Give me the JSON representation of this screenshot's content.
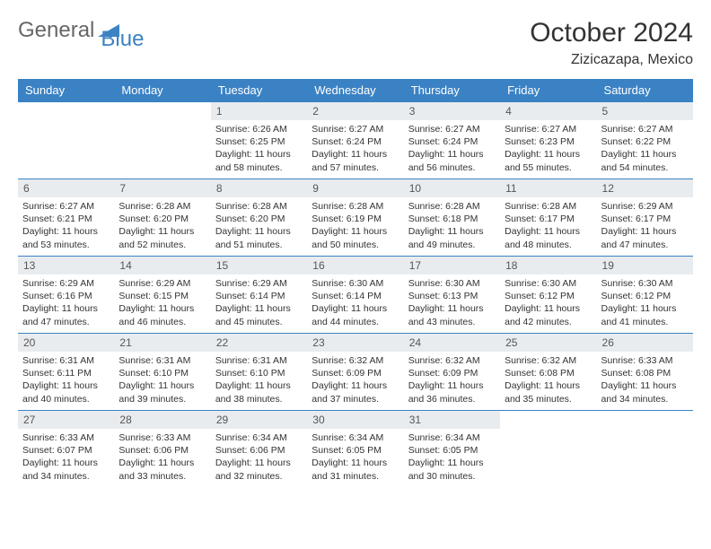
{
  "brand": {
    "part1": "General",
    "part2": "Blue"
  },
  "title": "October 2024",
  "location": "Zizicazapa, Mexico",
  "colors": {
    "header_bg": "#3b82c4",
    "header_fg": "#ffffff",
    "daynum_bg": "#e9ecef",
    "border": "#3b82c4",
    "text": "#333333",
    "page_bg": "#ffffff"
  },
  "day_labels": [
    "Sunday",
    "Monday",
    "Tuesday",
    "Wednesday",
    "Thursday",
    "Friday",
    "Saturday"
  ],
  "weeks": [
    [
      {
        "n": "",
        "sr": "",
        "ss": "",
        "dl": ""
      },
      {
        "n": "",
        "sr": "",
        "ss": "",
        "dl": ""
      },
      {
        "n": "1",
        "sr": "Sunrise: 6:26 AM",
        "ss": "Sunset: 6:25 PM",
        "dl": "Daylight: 11 hours and 58 minutes."
      },
      {
        "n": "2",
        "sr": "Sunrise: 6:27 AM",
        "ss": "Sunset: 6:24 PM",
        "dl": "Daylight: 11 hours and 57 minutes."
      },
      {
        "n": "3",
        "sr": "Sunrise: 6:27 AM",
        "ss": "Sunset: 6:24 PM",
        "dl": "Daylight: 11 hours and 56 minutes."
      },
      {
        "n": "4",
        "sr": "Sunrise: 6:27 AM",
        "ss": "Sunset: 6:23 PM",
        "dl": "Daylight: 11 hours and 55 minutes."
      },
      {
        "n": "5",
        "sr": "Sunrise: 6:27 AM",
        "ss": "Sunset: 6:22 PM",
        "dl": "Daylight: 11 hours and 54 minutes."
      }
    ],
    [
      {
        "n": "6",
        "sr": "Sunrise: 6:27 AM",
        "ss": "Sunset: 6:21 PM",
        "dl": "Daylight: 11 hours and 53 minutes."
      },
      {
        "n": "7",
        "sr": "Sunrise: 6:28 AM",
        "ss": "Sunset: 6:20 PM",
        "dl": "Daylight: 11 hours and 52 minutes."
      },
      {
        "n": "8",
        "sr": "Sunrise: 6:28 AM",
        "ss": "Sunset: 6:20 PM",
        "dl": "Daylight: 11 hours and 51 minutes."
      },
      {
        "n": "9",
        "sr": "Sunrise: 6:28 AM",
        "ss": "Sunset: 6:19 PM",
        "dl": "Daylight: 11 hours and 50 minutes."
      },
      {
        "n": "10",
        "sr": "Sunrise: 6:28 AM",
        "ss": "Sunset: 6:18 PM",
        "dl": "Daylight: 11 hours and 49 minutes."
      },
      {
        "n": "11",
        "sr": "Sunrise: 6:28 AM",
        "ss": "Sunset: 6:17 PM",
        "dl": "Daylight: 11 hours and 48 minutes."
      },
      {
        "n": "12",
        "sr": "Sunrise: 6:29 AM",
        "ss": "Sunset: 6:17 PM",
        "dl": "Daylight: 11 hours and 47 minutes."
      }
    ],
    [
      {
        "n": "13",
        "sr": "Sunrise: 6:29 AM",
        "ss": "Sunset: 6:16 PM",
        "dl": "Daylight: 11 hours and 47 minutes."
      },
      {
        "n": "14",
        "sr": "Sunrise: 6:29 AM",
        "ss": "Sunset: 6:15 PM",
        "dl": "Daylight: 11 hours and 46 minutes."
      },
      {
        "n": "15",
        "sr": "Sunrise: 6:29 AM",
        "ss": "Sunset: 6:14 PM",
        "dl": "Daylight: 11 hours and 45 minutes."
      },
      {
        "n": "16",
        "sr": "Sunrise: 6:30 AM",
        "ss": "Sunset: 6:14 PM",
        "dl": "Daylight: 11 hours and 44 minutes."
      },
      {
        "n": "17",
        "sr": "Sunrise: 6:30 AM",
        "ss": "Sunset: 6:13 PM",
        "dl": "Daylight: 11 hours and 43 minutes."
      },
      {
        "n": "18",
        "sr": "Sunrise: 6:30 AM",
        "ss": "Sunset: 6:12 PM",
        "dl": "Daylight: 11 hours and 42 minutes."
      },
      {
        "n": "19",
        "sr": "Sunrise: 6:30 AM",
        "ss": "Sunset: 6:12 PM",
        "dl": "Daylight: 11 hours and 41 minutes."
      }
    ],
    [
      {
        "n": "20",
        "sr": "Sunrise: 6:31 AM",
        "ss": "Sunset: 6:11 PM",
        "dl": "Daylight: 11 hours and 40 minutes."
      },
      {
        "n": "21",
        "sr": "Sunrise: 6:31 AM",
        "ss": "Sunset: 6:10 PM",
        "dl": "Daylight: 11 hours and 39 minutes."
      },
      {
        "n": "22",
        "sr": "Sunrise: 6:31 AM",
        "ss": "Sunset: 6:10 PM",
        "dl": "Daylight: 11 hours and 38 minutes."
      },
      {
        "n": "23",
        "sr": "Sunrise: 6:32 AM",
        "ss": "Sunset: 6:09 PM",
        "dl": "Daylight: 11 hours and 37 minutes."
      },
      {
        "n": "24",
        "sr": "Sunrise: 6:32 AM",
        "ss": "Sunset: 6:09 PM",
        "dl": "Daylight: 11 hours and 36 minutes."
      },
      {
        "n": "25",
        "sr": "Sunrise: 6:32 AM",
        "ss": "Sunset: 6:08 PM",
        "dl": "Daylight: 11 hours and 35 minutes."
      },
      {
        "n": "26",
        "sr": "Sunrise: 6:33 AM",
        "ss": "Sunset: 6:08 PM",
        "dl": "Daylight: 11 hours and 34 minutes."
      }
    ],
    [
      {
        "n": "27",
        "sr": "Sunrise: 6:33 AM",
        "ss": "Sunset: 6:07 PM",
        "dl": "Daylight: 11 hours and 34 minutes."
      },
      {
        "n": "28",
        "sr": "Sunrise: 6:33 AM",
        "ss": "Sunset: 6:06 PM",
        "dl": "Daylight: 11 hours and 33 minutes."
      },
      {
        "n": "29",
        "sr": "Sunrise: 6:34 AM",
        "ss": "Sunset: 6:06 PM",
        "dl": "Daylight: 11 hours and 32 minutes."
      },
      {
        "n": "30",
        "sr": "Sunrise: 6:34 AM",
        "ss": "Sunset: 6:05 PM",
        "dl": "Daylight: 11 hours and 31 minutes."
      },
      {
        "n": "31",
        "sr": "Sunrise: 6:34 AM",
        "ss": "Sunset: 6:05 PM",
        "dl": "Daylight: 11 hours and 30 minutes."
      },
      {
        "n": "",
        "sr": "",
        "ss": "",
        "dl": ""
      },
      {
        "n": "",
        "sr": "",
        "ss": "",
        "dl": ""
      }
    ]
  ]
}
